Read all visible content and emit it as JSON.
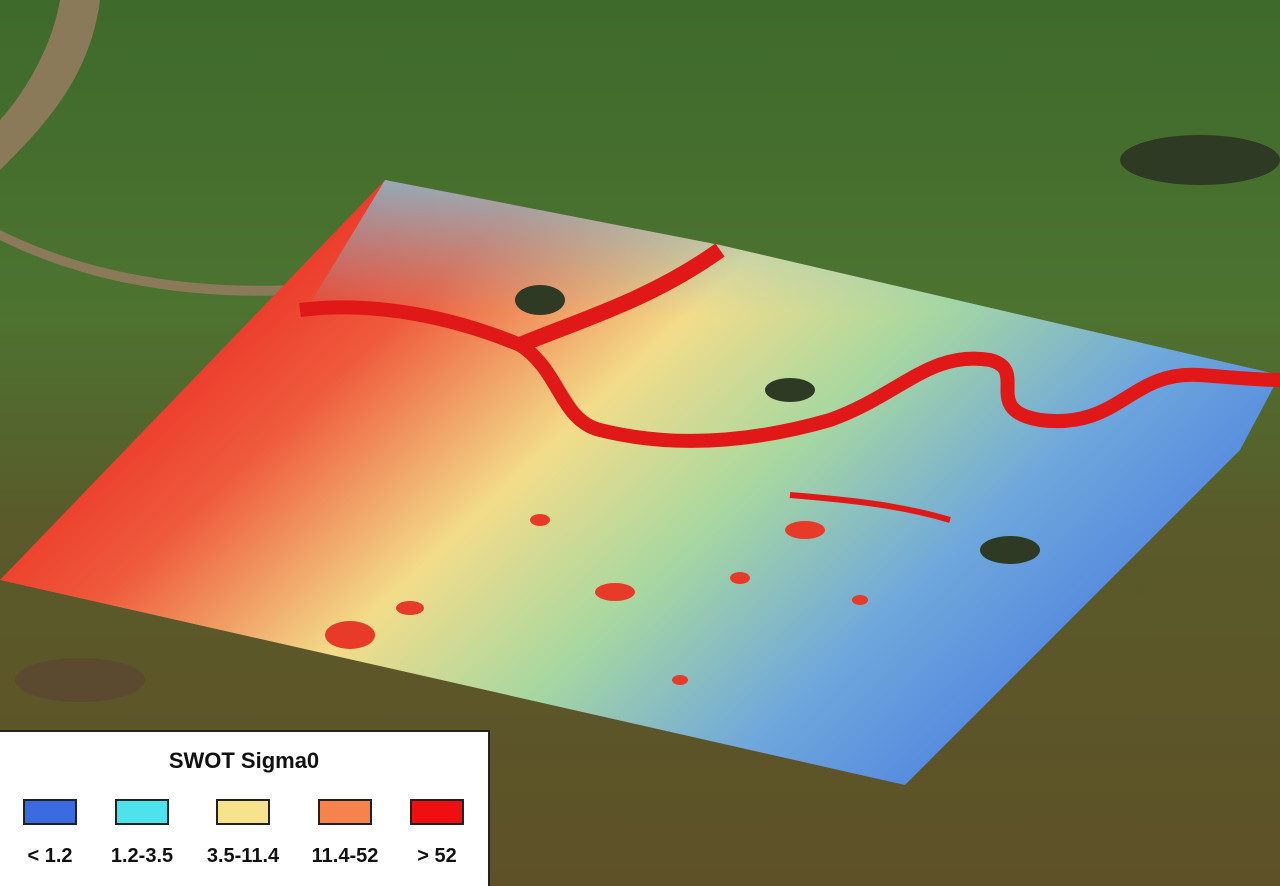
{
  "legend": {
    "title": "SWOT Sigma0",
    "classes": [
      {
        "label": "< 1.2",
        "color": "#3a6be0"
      },
      {
        "label": "1.2-3.5",
        "color": "#4ee3ec"
      },
      {
        "label": "3.5-11.4",
        "color": "#f6e38c"
      },
      {
        "label": "11.4-52",
        "color": "#f7824e"
      },
      {
        "label": "> 52",
        "color": "#ee1010"
      }
    ]
  }
}
